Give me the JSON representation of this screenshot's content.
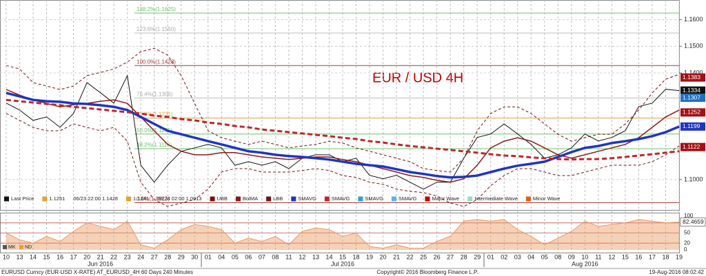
{
  "chart_data": {
    "type": "line",
    "title": "EUR / USD 4H",
    "categories": [
      "10",
      "13",
      "14",
      "15",
      "16",
      "17",
      "20",
      "21",
      "22",
      "23",
      "24",
      "27",
      "28",
      "29",
      "30",
      "01",
      "04",
      "05",
      "06",
      "07",
      "08",
      "11",
      "12",
      "13",
      "14",
      "15",
      "18",
      "19",
      "20",
      "21",
      "22",
      "25",
      "26",
      "27",
      "28",
      "29",
      "01",
      "02",
      "03",
      "04",
      "05",
      "08",
      "09",
      "10",
      "11",
      "12",
      "15",
      "16",
      "17",
      "18",
      "19"
    ],
    "months": [
      "Jun 2016",
      "Jul 2016",
      "Aug 2016"
    ],
    "ylim": [
      1.0886,
      1.1674
    ],
    "yticks": [
      {
        "value": 1.1,
        "label": "1.1000"
      },
      {
        "value": 1.14,
        "label": "1.1400"
      },
      {
        "value": 1.15,
        "label": "1.1500"
      },
      {
        "value": 1.16,
        "label": "1.1600"
      }
    ],
    "grid": true,
    "series": [
      {
        "name": "Last Price",
        "color": "#111111",
        "width": 1,
        "dash": "",
        "values": [
          1.1287,
          1.1261,
          1.1222,
          1.1235,
          1.1196,
          1.1248,
          1.1364,
          1.1326,
          1.1287,
          1.139,
          1.1054,
          1.099,
          1.1054,
          1.1106,
          1.1119,
          1.1132,
          1.1119,
          1.1054,
          1.1067,
          1.1054,
          1.1067,
          1.1041,
          1.108,
          1.1093,
          1.1093,
          1.1067,
          1.108,
          1.1016,
          1.1003,
          1.1016,
          1.099,
          1.0964,
          1.099,
          1.099,
          1.108,
          1.1158,
          1.1171,
          1.1209,
          1.1171,
          1.1132,
          1.108,
          1.1093,
          1.1119,
          1.1171,
          1.1145,
          1.1158,
          1.1183,
          1.1274,
          1.1287,
          1.1339,
          1.1334
        ]
      },
      {
        "name": "UBB",
        "color": "#7a1010",
        "width": 1,
        "dash": "4 3",
        "values": [
          1.1428,
          1.1415,
          1.1364,
          1.1351,
          1.1338,
          1.1351,
          1.139,
          1.1402,
          1.1415,
          1.1441,
          1.148,
          1.1493,
          1.1467,
          1.139,
          1.1286,
          1.1183,
          1.1157,
          1.1144,
          1.1132,
          1.1144,
          1.1132,
          1.1119,
          1.1126,
          1.1132,
          1.1144,
          1.1137,
          1.1119,
          1.1106,
          1.1093,
          1.108,
          1.1067,
          1.1041,
          1.1034,
          1.1028,
          1.108,
          1.1183,
          1.1248,
          1.1273,
          1.1273,
          1.1248,
          1.1209,
          1.117,
          1.1144,
          1.1157,
          1.117,
          1.117,
          1.1209,
          1.1261,
          1.1325,
          1.1377,
          1.1395
        ]
      },
      {
        "name": "BolMA",
        "color": "#8b1a1a",
        "width": 1.5,
        "dash": "",
        "values": [
          1.1338,
          1.1317,
          1.1299,
          1.1286,
          1.1273,
          1.1281,
          1.1286,
          1.1294,
          1.1299,
          1.1286,
          1.1235,
          1.1183,
          1.1132,
          1.1106,
          1.1093,
          1.1093,
          1.1101,
          1.1101,
          1.1093,
          1.1085,
          1.108,
          1.1075,
          1.108,
          1.1085,
          1.1085,
          1.1075,
          1.1067,
          1.1054,
          1.1041,
          1.1028,
          1.1015,
          1.1008,
          1.0997,
          1.099,
          1.1003,
          1.1054,
          1.1119,
          1.1144,
          1.1157,
          1.1144,
          1.1119,
          1.1093,
          1.108,
          1.1093,
          1.1106,
          1.1119,
          1.1132,
          1.1157,
          1.1196,
          1.1235,
          1.1261
        ]
      },
      {
        "name": "LBB",
        "color": "#7a1010",
        "width": 1,
        "dash": "4 3",
        "values": [
          1.1248,
          1.1222,
          1.1196,
          1.1183,
          1.1183,
          1.1209,
          1.1196,
          1.1183,
          1.1196,
          1.1144,
          1.099,
          1.0925,
          1.0899,
          1.0912,
          1.0925,
          1.0964,
          1.1028,
          1.1041,
          1.1041,
          1.1028,
          1.1028,
          1.1028,
          1.1034,
          1.1041,
          1.1034,
          1.1015,
          1.1008,
          1.099,
          1.0982,
          1.0964,
          1.0956,
          1.0951,
          1.0938,
          1.0912,
          1.0899,
          1.0925,
          1.0977,
          1.1015,
          1.1041,
          1.1041,
          1.1028,
          1.1015,
          1.1015,
          1.1028,
          1.1041,
          1.1054,
          1.1054,
          1.1054,
          1.1067,
          1.1093,
          1.1126
        ]
      },
      {
        "name": "SMAVG",
        "color": "#1f35c0",
        "width": 3.5,
        "dash": "",
        "values": [
          1.1325,
          1.1312,
          1.1299,
          1.1294,
          1.1292,
          1.1286,
          1.1284,
          1.1279,
          1.1273,
          1.1261,
          1.1235,
          1.1209,
          1.1183,
          1.117,
          1.1157,
          1.1144,
          1.1132,
          1.1119,
          1.1106,
          1.1101,
          1.1093,
          1.1088,
          1.1085,
          1.108,
          1.1075,
          1.1067,
          1.1059,
          1.1054,
          1.1049,
          1.1039,
          1.1028,
          1.1021,
          1.1013,
          1.1008,
          1.101,
          1.1015,
          1.1028,
          1.1041,
          1.1052,
          1.1059,
          1.1067,
          1.1085,
          1.1103,
          1.1119,
          1.1126,
          1.1137,
          1.1144,
          1.1152,
          1.1163,
          1.1178,
          1.1199
        ]
      },
      {
        "name": "SMAVG",
        "color": "#c0262b",
        "width": 3,
        "dash": "7 4",
        "values": [
          1.1299,
          1.1294,
          1.1289,
          1.1284,
          1.1279,
          1.1273,
          1.1268,
          1.1263,
          1.1258,
          1.1253,
          1.1248,
          1.124,
          1.1235,
          1.1227,
          1.1222,
          1.1214,
          1.1209,
          1.1201,
          1.1196,
          1.1188,
          1.1183,
          1.1178,
          1.1173,
          1.1168,
          1.1163,
          1.1157,
          1.1152,
          1.1144,
          1.1139,
          1.1132,
          1.1126,
          1.1121,
          1.1116,
          1.1111,
          1.1106,
          1.1101,
          1.1095,
          1.109,
          1.1088,
          1.1083,
          1.108,
          1.1077,
          1.1075,
          1.1077,
          1.1077,
          1.108,
          1.1085,
          1.109,
          1.1095,
          1.1101,
          1.1106
        ]
      }
    ],
    "legend_info": [
      "1.1251",
      "06/23 22:00 1.1428",
      "1.1341",
      "06/24 02:00 1.0913"
    ],
    "legend_extra": [
      {
        "label": "SMAVG",
        "color": "#2f9fe0"
      },
      {
        "label": "SMAVG",
        "color": "#5ab4e8"
      },
      {
        "label": "Major Wave",
        "color": "#c00000"
      },
      {
        "label": "Intermediate Wave",
        "color": "#8fe0c8"
      },
      {
        "label": "Minor Wave",
        "color": "#e06010"
      }
    ],
    "fib_levels": [
      {
        "label": "138.2%(1.1625)",
        "value": 1.1625,
        "color": "#6cc36c"
      },
      {
        "label": "123.6%(1.1550)",
        "value": 1.155,
        "color": "#bbbbbb"
      },
      {
        "label": "100.0%(1.1428)",
        "value": 1.1428,
        "color": "#a33a3a"
      },
      {
        "label": "76.4%(1.1306)",
        "value": 1.1306,
        "color": "#bbbbbb"
      },
      {
        "label": "61.8%(1.1231)",
        "value": 1.1231,
        "color": "#e0a040"
      },
      {
        "label": "50.0%(1.1171)",
        "value": 1.1171,
        "color": "#6cc36c"
      },
      {
        "label": "38.2%(1.1116)",
        "value": 1.1116,
        "color": "#6cc36c"
      },
      {
        "label": "0.0%(1.0913)",
        "value": 1.0913,
        "color": "#a33a3a"
      }
    ],
    "price_tags": [
      {
        "value": 1.1383,
        "color": "#a50f15"
      },
      {
        "value": 1.1334,
        "color": "#111111"
      },
      {
        "value": 1.1307,
        "color": "#1f6fc0"
      },
      {
        "value": 1.1252,
        "color": "#a50f15"
      },
      {
        "value": 1.1199,
        "color": "#1f35c0"
      },
      {
        "value": 1.1122,
        "color": "#a50f15"
      }
    ],
    "oscillator": {
      "ylim": [
        0,
        100
      ],
      "yticks": [
        0,
        20,
        50,
        80,
        100
      ],
      "color": "#e89a60",
      "legend": [
        "MK",
        "ND"
      ],
      "values": [
        50,
        30,
        20,
        40,
        25,
        55,
        80,
        70,
        60,
        85,
        15,
        5,
        30,
        60,
        75,
        70,
        60,
        20,
        35,
        25,
        40,
        15,
        55,
        65,
        60,
        40,
        50,
        10,
        5,
        15,
        5,
        5,
        25,
        40,
        85,
        90,
        85,
        90,
        60,
        40,
        15,
        35,
        55,
        85,
        70,
        75,
        80,
        90,
        85,
        80,
        82.4659
      ]
    },
    "footer": {
      "left": "EURUSD Curncy (EUR-USD X-RATE) AT_EURUSD_4H 60 Days 240 Minutes",
      "center": "Copyright© 2016 Bloomberg Finance L.P.",
      "right": "19-Aug-2016 08:02:42"
    }
  }
}
